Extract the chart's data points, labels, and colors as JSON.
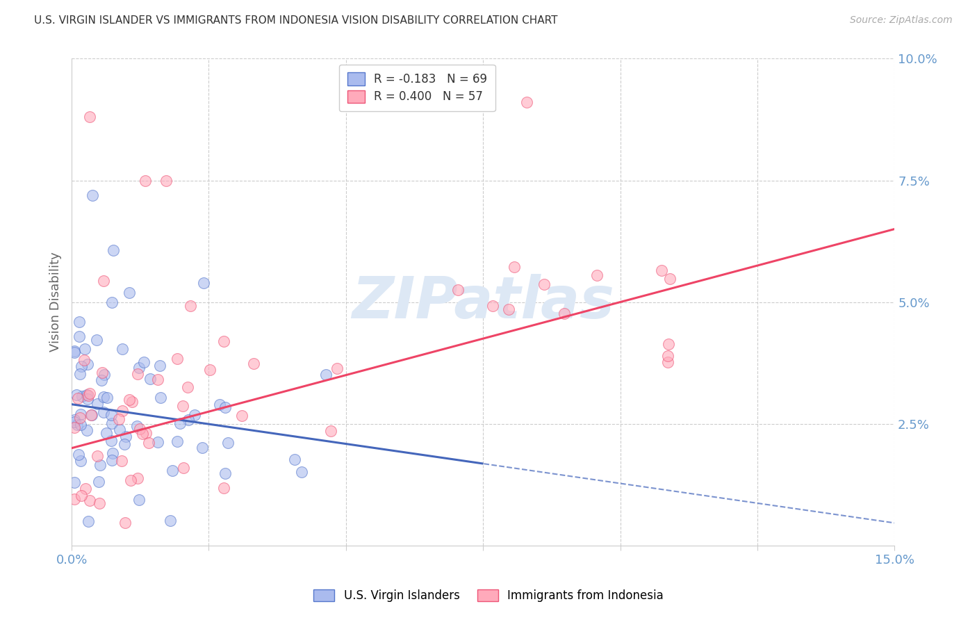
{
  "title": "U.S. VIRGIN ISLANDER VS IMMIGRANTS FROM INDONESIA VISION DISABILITY CORRELATION CHART",
  "source": "Source: ZipAtlas.com",
  "tick_color": "#6699cc",
  "ylabel": "Vision Disability",
  "xlim": [
    0.0,
    0.15
  ],
  "ylim": [
    0.0,
    0.1
  ],
  "blue_R": -0.183,
  "blue_N": 69,
  "pink_R": 0.4,
  "pink_N": 57,
  "blue_color": "#aabbee",
  "pink_color": "#ffaabb",
  "blue_edge_color": "#5577cc",
  "pink_edge_color": "#ee5577",
  "blue_line_color": "#4466bb",
  "pink_line_color": "#ee4466",
  "watermark_color": "#dde8f5",
  "legend_label_blue": "U.S. Virgin Islanders",
  "legend_label_pink": "Immigrants from Indonesia",
  "blue_line_x0": 0.0,
  "blue_line_y0": 0.029,
  "blue_line_x1": 0.08,
  "blue_line_y1": 0.016,
  "pink_line_x0": 0.0,
  "pink_line_y0": 0.02,
  "pink_line_x1": 0.15,
  "pink_line_y1": 0.065
}
